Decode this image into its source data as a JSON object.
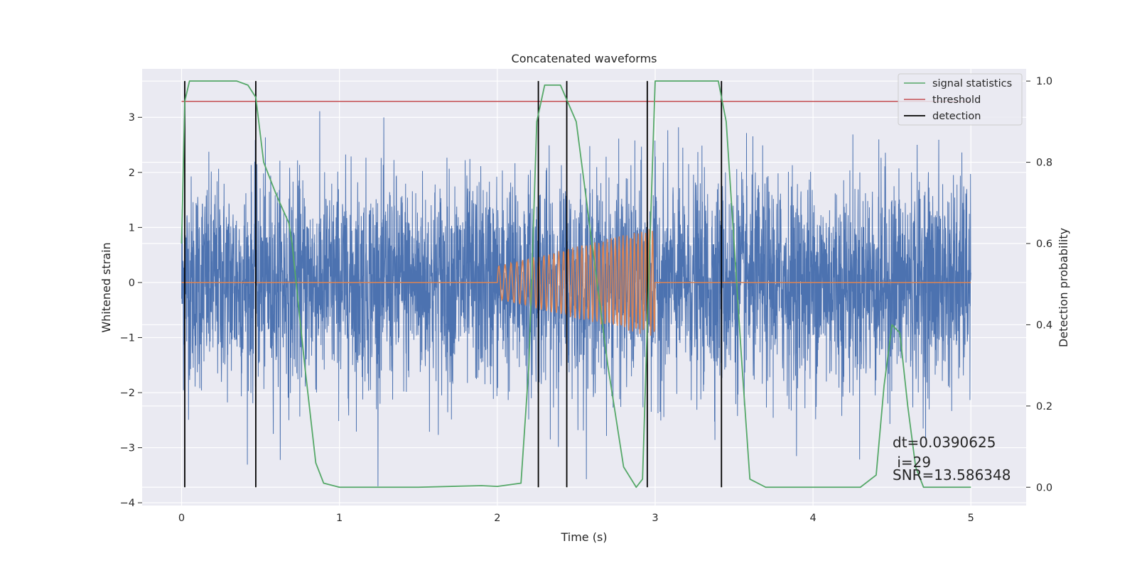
{
  "chart_data": {
    "type": "line",
    "title": "Concatenated waveforms",
    "xlabel": "Time (s)",
    "ylabel": "Whitened strain",
    "y2label": "Detection probability",
    "xlim": [
      -0.25,
      5.35
    ],
    "ylim": [
      -4.05,
      3.88
    ],
    "y2lim": [
      -0.045,
      1.03
    ],
    "xticks": [
      0,
      1,
      2,
      3,
      4,
      5
    ],
    "xtick_labels": [
      "0",
      "1",
      "2",
      "3",
      "4",
      "5"
    ],
    "yticks": [
      -4,
      -3,
      -2,
      -1,
      0,
      1,
      2,
      3
    ],
    "ytick_labels": [
      "−4",
      "−3",
      "−2",
      "−1",
      "0",
      "1",
      "2",
      "3"
    ],
    "y2ticks": [
      0.0,
      0.2,
      0.4,
      0.6,
      0.8,
      1.0
    ],
    "y2tick_labels": [
      "0.0",
      "0.2",
      "0.4",
      "0.6",
      "0.8",
      "1.0"
    ],
    "grid": true,
    "legend_position": "top-right",
    "legend": [
      "signal statistics",
      "threshold",
      "detection"
    ],
    "colors": {
      "strain": "#4c72b0",
      "injection": "#dd8452",
      "signal_statistics": "#55a868",
      "threshold": "#c44e52",
      "detection": "#000000",
      "background": "#eaeaf2",
      "grid": "#ffffff"
    },
    "series": [
      {
        "name": "signal statistics",
        "axis": "right",
        "x": [
          0,
          0.02,
          0.05,
          0.1,
          0.2,
          0.35,
          0.42,
          0.47,
          0.52,
          0.6,
          0.68,
          0.7,
          0.78,
          0.85,
          0.9,
          1.0,
          1.5,
          1.9,
          2.0,
          2.15,
          2.2,
          2.25,
          2.3,
          2.4,
          2.5,
          2.6,
          2.7,
          2.8,
          2.88,
          2.92,
          2.95,
          3.0,
          3.1,
          3.4,
          3.45,
          3.5,
          3.55,
          3.6,
          3.7,
          4.0,
          4.3,
          4.4,
          4.45,
          4.5,
          4.55,
          4.6,
          4.65,
          4.7,
          5.0
        ],
        "values": [
          0.6,
          0.95,
          1.0,
          1.0,
          1.0,
          1.0,
          0.99,
          0.96,
          0.8,
          0.72,
          0.65,
          0.6,
          0.3,
          0.06,
          0.01,
          0.0,
          0.0,
          0.004,
          0.002,
          0.01,
          0.3,
          0.9,
          0.99,
          0.99,
          0.9,
          0.6,
          0.3,
          0.05,
          0.0,
          0.02,
          0.4,
          1.0,
          1.0,
          1.0,
          0.9,
          0.6,
          0.3,
          0.02,
          0.0,
          0.0,
          0.0,
          0.03,
          0.25,
          0.4,
          0.38,
          0.2,
          0.05,
          0.0,
          0.0
        ]
      },
      {
        "name": "threshold",
        "axis": "right",
        "x": [
          0,
          5
        ],
        "values": [
          0.95,
          0.95
        ]
      }
    ],
    "detections_x": [
      0.02,
      0.47,
      2.26,
      2.44,
      2.95,
      3.42
    ],
    "strain_trace": {
      "x_range": [
        0,
        5
      ],
      "typical_amplitude": 1.0,
      "max": 3.5,
      "min": -3.7
    },
    "injection_trace": {
      "x_range": [
        2.0,
        3.0
      ],
      "start_amplitude": 0.3,
      "end_amplitude": 1.0,
      "start_freq_hz": 25,
      "end_freq_hz": 45
    },
    "annotations": [
      "dt=0.0390625",
      " i=29",
      "SNR=13.586348"
    ]
  }
}
